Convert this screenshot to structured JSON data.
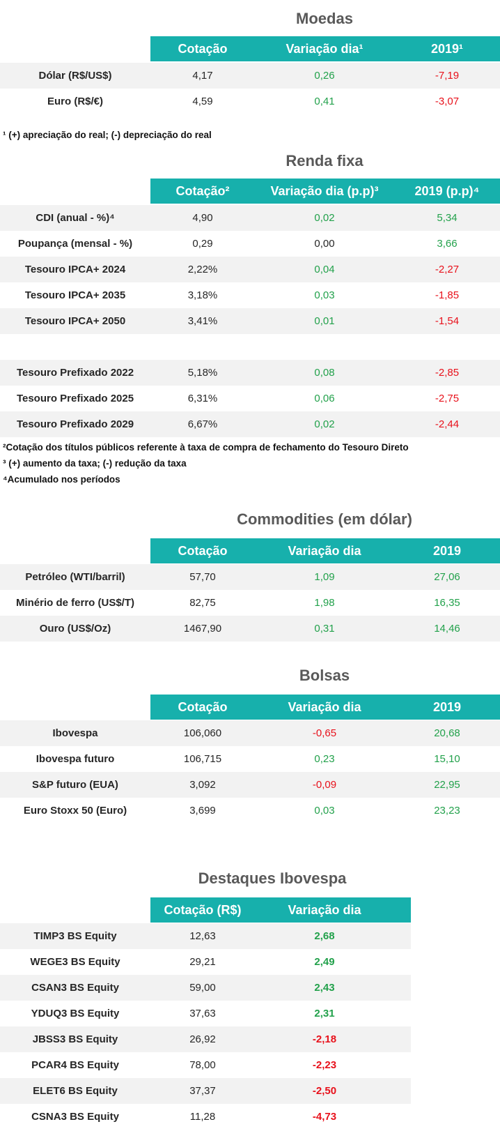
{
  "moedas": {
    "title": "Moedas",
    "headers": [
      "Cotação",
      "Variação dia¹",
      "2019¹"
    ],
    "rows": [
      {
        "label": "Dólar (R$/US$)",
        "cotacao": "4,17",
        "variacao": "0,26",
        "ano": "-7,19"
      },
      {
        "label": "Euro (R$/€)",
        "cotacao": "4,59",
        "variacao": "0,41",
        "ano": "-3,07"
      }
    ],
    "note": "¹ (+) apreciação do real; (-) depreciação do real"
  },
  "renda_fixa": {
    "title": "Renda fixa",
    "headers": [
      "Cotação²",
      "Variação dia (p.p)³",
      "2019 (p.p)⁴"
    ],
    "rows": [
      {
        "label": "CDI (anual - %)⁴",
        "cotacao": "4,90",
        "variacao": "0,02",
        "ano": "5,34"
      },
      {
        "label": "Poupança (mensal - %)",
        "cotacao": "0,29",
        "variacao": "0,00",
        "ano": "3,66"
      },
      {
        "label": "Tesouro IPCA+ 2024",
        "cotacao": "2,22%",
        "variacao": "0,04",
        "ano": "-2,27"
      },
      {
        "label": "Tesouro IPCA+ 2035",
        "cotacao": "3,18%",
        "variacao": "0,03",
        "ano": "-1,85"
      },
      {
        "label": "Tesouro IPCA+ 2050",
        "cotacao": "3,41%",
        "variacao": "0,01",
        "ano": "-1,54"
      },
      {
        "label": "",
        "cotacao": "",
        "variacao": "",
        "ano": ""
      },
      {
        "label": "Tesouro Prefixado 2022",
        "cotacao": "5,18%",
        "variacao": "0,08",
        "ano": "-2,85"
      },
      {
        "label": "Tesouro Prefixado 2025",
        "cotacao": "6,31%",
        "variacao": "0,06",
        "ano": "-2,75"
      },
      {
        "label": "Tesouro Prefixado 2029",
        "cotacao": "6,67%",
        "variacao": "0,02",
        "ano": "-2,44"
      }
    ],
    "notes": [
      "²Cotação dos títulos públicos referente à taxa de compra de fechamento do Tesouro Direto",
      "³ (+) aumento da taxa; (-) redução da taxa",
      "⁴Acumulado nos períodos"
    ]
  },
  "commodities": {
    "title": "Commodities (em dólar)",
    "headers": [
      "Cotação",
      "Variação dia",
      "2019"
    ],
    "rows": [
      {
        "label": "Petróleo (WTI/barril)",
        "cotacao": "57,70",
        "variacao": "1,09",
        "ano": "27,06"
      },
      {
        "label": "Minério de ferro (US$/T)",
        "cotacao": "82,75",
        "variacao": "1,98",
        "ano": "16,35"
      },
      {
        "label": "Ouro (US$/Oz)",
        "cotacao": "1467,90",
        "variacao": "0,31",
        "ano": "14,46"
      }
    ]
  },
  "bolsas": {
    "title": "Bolsas",
    "headers": [
      "Cotação",
      "Variação dia",
      "2019"
    ],
    "rows": [
      {
        "label": "Ibovespa",
        "cotacao": "106,060",
        "variacao": "-0,65",
        "ano": "20,68"
      },
      {
        "label": "Ibovespa futuro",
        "cotacao": "106,715",
        "variacao": "0,23",
        "ano": "15,10"
      },
      {
        "label": "S&P futuro (EUA)",
        "cotacao": "3,092",
        "variacao": "-0,09",
        "ano": "22,95"
      },
      {
        "label": "Euro Stoxx 50 (Euro)",
        "cotacao": "3,699",
        "variacao": "0,03",
        "ano": "23,23"
      }
    ]
  },
  "destaques": {
    "title": "Destaques Ibovespa",
    "headers": [
      "Cotação (R$)",
      "Variação dia"
    ],
    "rows": [
      {
        "label": "TIMP3 BS Equity",
        "cotacao": "12,63",
        "variacao": "2,68"
      },
      {
        "label": "WEGE3 BS Equity",
        "cotacao": "29,21",
        "variacao": "2,49"
      },
      {
        "label": "CSAN3 BS Equity",
        "cotacao": "59,00",
        "variacao": "2,43"
      },
      {
        "label": "YDUQ3 BS Equity",
        "cotacao": "37,63",
        "variacao": "2,31"
      },
      {
        "label": "JBSS3 BS Equity",
        "cotacao": "26,92",
        "variacao": "-2,18"
      },
      {
        "label": "PCAR4 BS Equity",
        "cotacao": "78,00",
        "variacao": "-2,23"
      },
      {
        "label": "ELET6 BS Equity",
        "cotacao": "37,37",
        "variacao": "-2,50"
      },
      {
        "label": "CSNA3 BS Equity",
        "cotacao": "11,28",
        "variacao": "-4,73"
      }
    ]
  },
  "colors": {
    "header": "#17b0ac",
    "positive": "#22a14b",
    "negative": "#e8111b",
    "alt_row": "#f2f2f2"
  }
}
